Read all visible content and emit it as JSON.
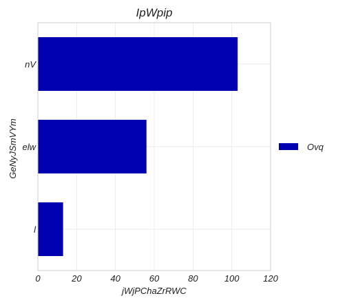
{
  "chart_data": {
    "type": "bar",
    "orientation": "horizontal",
    "title": "IpWpip",
    "xlabel": "jWjPChaZrRWC",
    "ylabel": "GeNyJSmVYm",
    "categories": [
      "nV",
      "elw",
      "l"
    ],
    "series": [
      {
        "name": "Ovq",
        "values": [
          103,
          56,
          13
        ],
        "color": "#0000b0"
      }
    ],
    "xlim": [
      0,
      120
    ],
    "xticks": [
      0,
      20,
      40,
      60,
      80,
      100,
      120
    ],
    "grid": true,
    "legend_position": "right"
  }
}
